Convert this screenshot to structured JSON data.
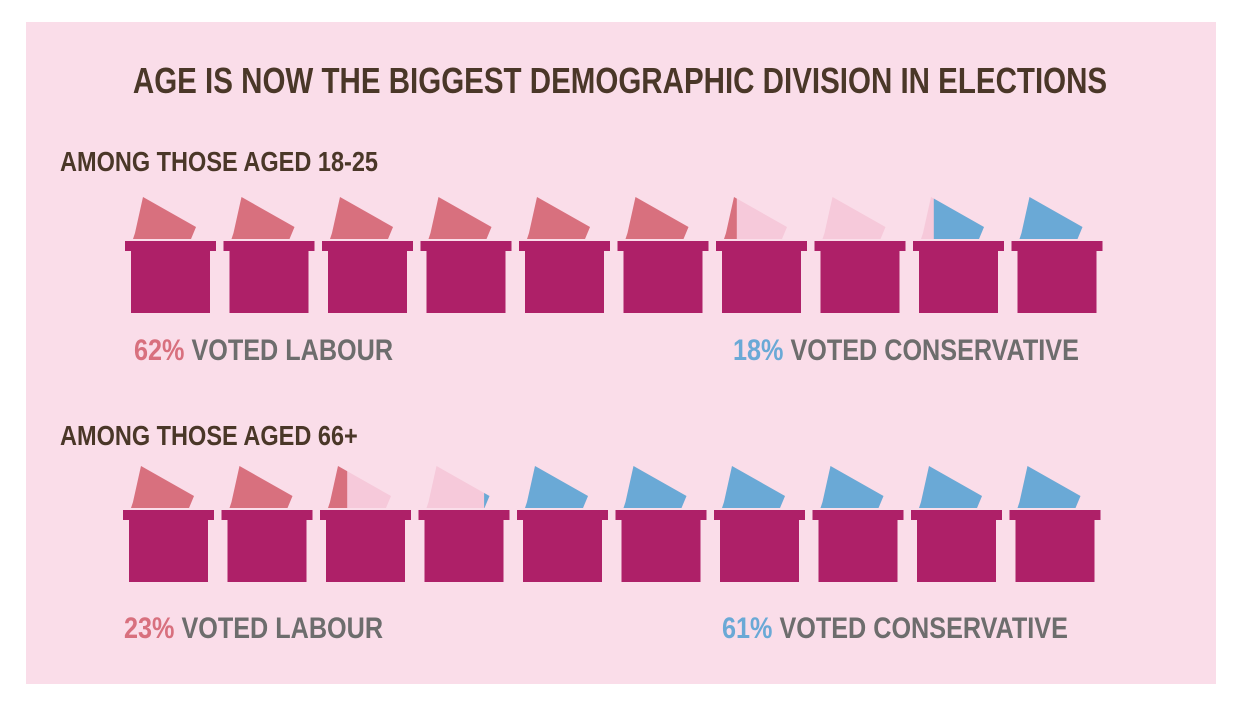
{
  "title": "AGE IS NOW THE BIGGEST DEMOGRAPHIC DIVISION IN ELECTIONS",
  "colors": {
    "background": "#fadde9",
    "box": "#ae2068",
    "labour": "#d8707e",
    "conservative": "#6aa9d6",
    "other": "#f6c9da",
    "heading": "#4a3728",
    "text": "#6d6d6d"
  },
  "icon": "ballot-box-icon",
  "chart_data": [
    {
      "type": "pictogram",
      "group": "AMONG THOSE AGED 18-25",
      "units": 10,
      "labour_pct": 62,
      "conservative_pct": 18,
      "labour_label": "62%",
      "labour_text": "VOTED LABOUR",
      "conservative_label": "18%",
      "conservative_text": "VOTED CONSERVATIVE"
    },
    {
      "type": "pictogram",
      "group": "AMONG THOSE AGED 66+",
      "units": 10,
      "labour_pct": 23,
      "conservative_pct": 61,
      "labour_label": "23%",
      "labour_text": "VOTED LABOUR",
      "conservative_label": "61%",
      "conservative_text": "VOTED CONSERVATIVE"
    }
  ]
}
